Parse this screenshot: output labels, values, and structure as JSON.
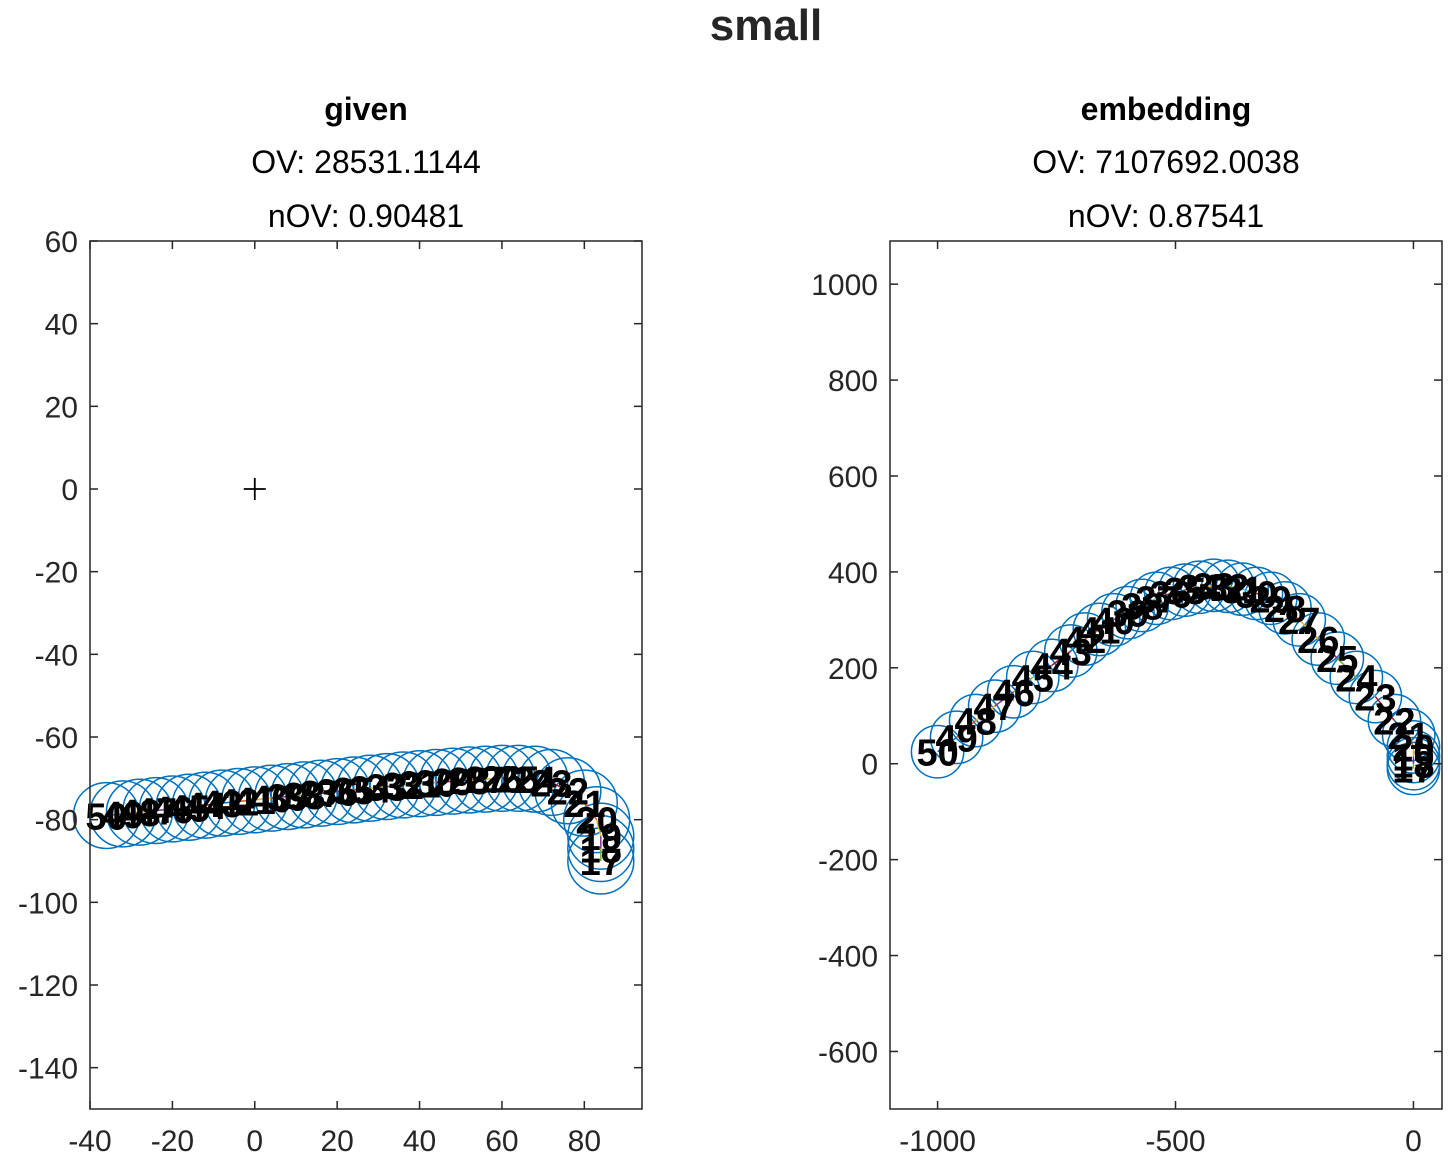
{
  "figure": {
    "title": "small"
  },
  "chart_data": [
    {
      "type": "scatter",
      "title": "given",
      "subtitle_lines": [
        "OV: 28531.1144",
        "nOV: 0.90481"
      ],
      "xlabel": "",
      "ylabel": "",
      "xlim": [
        -40,
        94
      ],
      "ylim": [
        -150,
        60
      ],
      "xticks": [
        -40,
        -20,
        0,
        20,
        40,
        60,
        80
      ],
      "yticks": [
        -140,
        -120,
        -100,
        -80,
        -60,
        -40,
        -20,
        0,
        20,
        40,
        60
      ],
      "grid": false,
      "circle_radius": 8,
      "circle_color": "#0072BD",
      "marker": {
        "x": 0,
        "y": 0,
        "symbol": "+"
      },
      "series": [
        {
          "x": [
            -36,
            -32,
            -28,
            -24,
            -20,
            -16,
            -12,
            -8,
            -4,
            0,
            4,
            8,
            12,
            16,
            20,
            24,
            28,
            32,
            36,
            40,
            44,
            48,
            52,
            56,
            60,
            64,
            68,
            72,
            76,
            80,
            83,
            84,
            84,
            84
          ],
          "y": [
            -79,
            -78.6,
            -78.2,
            -77.8,
            -77.4,
            -77,
            -76.5,
            -76,
            -75.6,
            -75.2,
            -74.8,
            -74.4,
            -74,
            -73.6,
            -73.2,
            -72.8,
            -72.4,
            -72,
            -71.6,
            -71.3,
            -71,
            -70.7,
            -70.4,
            -70.2,
            -70,
            -70,
            -70.2,
            -71,
            -73,
            -76,
            -80,
            -84,
            -87,
            -90
          ]
        }
      ],
      "point_labels": [
        "50",
        "49",
        "48",
        "47",
        "46",
        "45",
        "44",
        "43",
        "42",
        "41",
        "40",
        "39",
        "38",
        "37",
        "36",
        "35",
        "34",
        "33",
        "32",
        "31",
        "30",
        "29",
        "28",
        "27",
        "26",
        "25",
        "24",
        "23",
        "22",
        "21",
        "20",
        "19",
        "18",
        "17"
      ]
    },
    {
      "type": "scatter",
      "title": "embedding",
      "subtitle_lines": [
        "OV: 7107692.0038",
        "nOV: 0.87541"
      ],
      "xlabel": "",
      "ylabel": "",
      "xlim": [
        -1100,
        60
      ],
      "ylim": [
        -720,
        1090
      ],
      "xticks": [
        -1000,
        -500,
        0
      ],
      "yticks": [
        -600,
        -400,
        -200,
        0,
        200,
        400,
        600,
        800,
        1000
      ],
      "grid": false,
      "circle_radius": 55,
      "circle_color": "#0072BD",
      "series": [
        {
          "x": [
            -1000,
            -960,
            -920,
            -880,
            -840,
            -800,
            -760,
            -720,
            -690,
            -660,
            -630,
            -600,
            -570,
            -540,
            -510,
            -480,
            -450,
            -420,
            -390,
            -360,
            -330,
            -300,
            -270,
            -240,
            -200,
            -160,
            -120,
            -80,
            -40,
            -10,
            0,
            0,
            0,
            0
          ],
          "y": [
            25,
            55,
            90,
            120,
            150,
            180,
            205,
            235,
            260,
            280,
            300,
            315,
            330,
            345,
            355,
            362,
            368,
            372,
            370,
            364,
            355,
            345,
            325,
            300,
            260,
            220,
            180,
            140,
            90,
            60,
            35,
            15,
            0,
            -10
          ]
        }
      ],
      "point_labels": [
        "50",
        "49",
        "48",
        "47",
        "46",
        "45",
        "44",
        "43",
        "42",
        "41",
        "40",
        "39",
        "38",
        "37",
        "36",
        "35",
        "34",
        "33",
        "32",
        "31",
        "30",
        "29",
        "28",
        "27",
        "26",
        "25",
        "24",
        "23",
        "22",
        "21",
        "20",
        "19",
        "18",
        "17"
      ]
    }
  ]
}
